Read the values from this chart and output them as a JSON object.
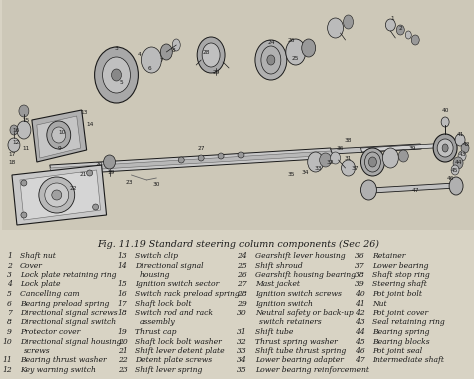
{
  "title": "Fig. 11.19 Standard steering column components (Sec 26)",
  "bg_color": "#d8d3c4",
  "text_color": "#1a1a1a",
  "title_fontsize": 6.8,
  "list_fontsize": 5.5,
  "col1": [
    [
      1,
      "Shaft nut"
    ],
    [
      2,
      "Cover"
    ],
    [
      3,
      "Lock plate retaining ring"
    ],
    [
      4,
      "Lock plate"
    ],
    [
      5,
      "Cancelling cam"
    ],
    [
      6,
      "Bearing preload spring"
    ],
    [
      7,
      "Directional signal screws"
    ],
    [
      8,
      "Directional signal switch"
    ],
    [
      9,
      "Protector cover"
    ],
    [
      10,
      "Directional signal housing",
      "screws"
    ],
    [
      11,
      "Bearing thrust washer"
    ],
    [
      12,
      "Key warning switch"
    ]
  ],
  "col2": [
    [
      13,
      "Switch clip"
    ],
    [
      14,
      "Directional signal",
      "housing"
    ],
    [
      15,
      "Ignition switch sector"
    ],
    [
      16,
      "Switch rack preload spring"
    ],
    [
      17,
      "Shaft lock bolt"
    ],
    [
      18,
      "Switch rod and rack",
      "assembly"
    ],
    [
      19,
      "Thrust cap"
    ],
    [
      20,
      "Shaft lock bolt washer"
    ],
    [
      21,
      "Shift lever detent plate"
    ],
    [
      22,
      "Detent plate screws"
    ],
    [
      23,
      "Shift lever spring"
    ]
  ],
  "col3": [
    [
      24,
      "Gearshift lever housing"
    ],
    [
      25,
      "Shift shroud"
    ],
    [
      26,
      "Gearshift housing bearing"
    ],
    [
      27,
      "Mast jacket"
    ],
    [
      28,
      "Ignition switch screws"
    ],
    [
      29,
      "Ignition switch"
    ],
    [
      30,
      "Neutral safety or back-up",
      "switch retainers"
    ],
    [
      31,
      "Shift tube"
    ],
    [
      32,
      "Thrust spring washer"
    ],
    [
      33,
      "Shift tube thrust spring"
    ],
    [
      34,
      "Lower bearing adapter"
    ],
    [
      35,
      "Lower bearing reinforcement"
    ]
  ],
  "col4": [
    [
      36,
      "Retainer"
    ],
    [
      37,
      "Lower bearing"
    ],
    [
      38,
      "Shaft stop ring"
    ],
    [
      39,
      "Steering shaft"
    ],
    [
      40,
      "Pot joint bolt"
    ],
    [
      41,
      "Nut"
    ],
    [
      42,
      "Pot joint cover"
    ],
    [
      43,
      "Seal retaining ring"
    ],
    [
      44,
      "Bearing spring"
    ],
    [
      45,
      "Bearing blocks"
    ],
    [
      46,
      "Pot joint seal"
    ],
    [
      47,
      "Intermediate shaft"
    ]
  ],
  "diagram_bg": "#cdc8b8"
}
